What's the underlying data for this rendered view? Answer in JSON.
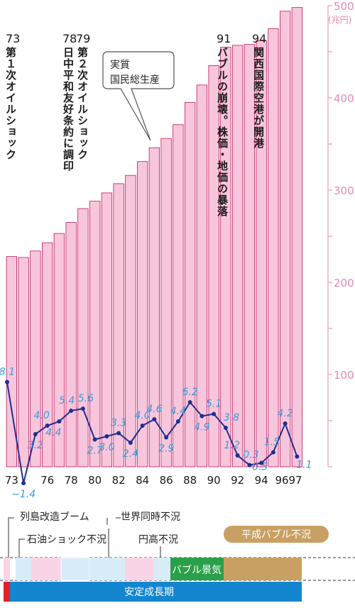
{
  "chart_data": {
    "type": "bar+line",
    "y_unit": "(兆円)",
    "y_right_ticks": [
      100,
      200,
      300,
      400,
      500
    ],
    "y_right_range": [
      0,
      500
    ],
    "bars_name": "実質国民総生産",
    "bars": {
      "years": [
        1973,
        1974,
        1975,
        1976,
        1977,
        1978,
        1979,
        1980,
        1981,
        1982,
        1983,
        1984,
        1985,
        1986,
        1987,
        1988,
        1989,
        1990,
        1991,
        1992,
        1993,
        1994,
        1995,
        1996,
        1997
      ],
      "values": [
        228,
        227,
        234,
        243,
        253,
        265,
        280,
        288,
        297,
        307,
        316,
        331,
        346,
        356,
        371,
        395,
        414,
        435,
        455,
        457,
        458,
        462,
        475,
        494,
        498
      ]
    },
    "line": {
      "years": [
        1973,
        1974,
        1975,
        1976,
        1977,
        1978,
        1979,
        1980,
        1981,
        1982,
        1983,
        1984,
        1985,
        1986,
        1987,
        1988,
        1989,
        1990,
        1991,
        1992,
        1993,
        1994,
        1995,
        1996,
        1997
      ],
      "values": [
        8.1,
        -1.4,
        3.2,
        4.0,
        4.4,
        5.4,
        5.6,
        2.7,
        3.0,
        3.3,
        2.4,
        4.0,
        4.6,
        2.9,
        4.4,
        6.2,
        4.9,
        5.1,
        3.8,
        1.2,
        0.3,
        0.5,
        1.5,
        4.2,
        1.1
      ],
      "labels": [
        "8.1",
        "−1.4",
        "3.2",
        "4.0",
        "4.4",
        "5.4",
        "5.6",
        "2.7",
        "3.0",
        "3.3",
        "2.4",
        "4.0",
        "4.6",
        "2.9",
        "4.4",
        "6.2",
        "4.9",
        "5.1",
        "3.8",
        "1.2",
        "0.3",
        "0.5",
        "1.5",
        "4.2",
        "1.1"
      ],
      "range": [
        -2,
        10
      ]
    },
    "x_tick_labels": [
      "73",
      "76",
      "78",
      "80",
      "82",
      "84",
      "86",
      "88",
      "90",
      "92",
      "94",
      "96",
      "97"
    ],
    "x_tick_years": [
      1973,
      1976,
      1978,
      1980,
      1982,
      1984,
      1986,
      1988,
      1990,
      1992,
      1994,
      1996,
      1997
    ],
    "events": [
      {
        "year_label": "73",
        "text": "第１次オイルショック"
      },
      {
        "year_label": "78",
        "text": "日中平和友好条約に調印"
      },
      {
        "year_label": "79",
        "text": "第２次オイルショック"
      },
      {
        "year_label": "91",
        "text": "バブルの崩壊。株価・地価の暴落"
      },
      {
        "year_label": "94",
        "text": "関西国際空港が開港"
      }
    ],
    "callout": {
      "line1": "実質",
      "line2": "国民総生産"
    }
  },
  "timeline": {
    "labels": {
      "rettou": "列島改造ブーム",
      "sekai": "世界同時不況",
      "sekiyu": "石油ショック不況",
      "endaka": "円高不況",
      "heisei": "平成バブル不況",
      "bubble": "バブル景気",
      "antei": "安定成長期"
    },
    "colors": {
      "pink": "#f9d4e6",
      "blue": "#d8ecf8",
      "green": "#2aa04a",
      "gold": "#c9a063",
      "bar_blue": "#1486cf",
      "red": "#e0202a"
    }
  },
  "colors": {
    "bar_fill": "#f8c6dc",
    "bar_stroke": "#c2185b",
    "line": "#1f2f8f",
    "label": "#3a9ad9",
    "axis_text": "#e58ab1"
  }
}
